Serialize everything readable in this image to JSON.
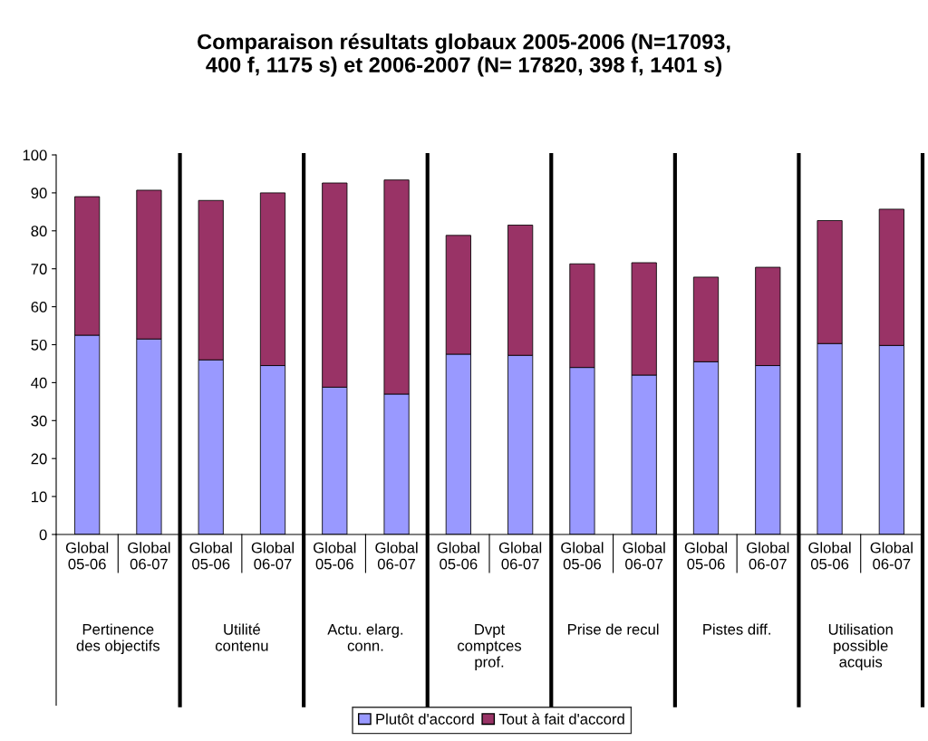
{
  "chart_data": {
    "type": "bar",
    "stacked": true,
    "title": "Comparaison résultats globaux 2005-2006 (N=17093,\n400 f, 1175 s) et 2006-2007 (N= 17820, 398 f, 1401 s)",
    "categories": [
      "Global\n05-06",
      "Global\n06-07",
      "Global\n05-06",
      "Global\n06-07",
      "Global\n05-06",
      "Global\n06-07",
      "Global\n05-06",
      "Global\n06-07",
      "Global\n05-06",
      "Global\n06-07",
      "Global\n05-06",
      "Global\n06-07",
      "Global\n05-06",
      "Global\n06-07"
    ],
    "series": [
      {
        "name": "Plutôt d'accord",
        "color": "#9999ff",
        "values": [
          52.5,
          51.5,
          46,
          44.5,
          38.8,
          37,
          47.5,
          47.2,
          44,
          42,
          45.5,
          44.5,
          50.3,
          49.8
        ]
      },
      {
        "name": "Tout à fait d'accord",
        "color": "#993366",
        "values": [
          36.5,
          39.2,
          42,
          45.5,
          53.8,
          56.4,
          31.3,
          34.3,
          27.3,
          29.6,
          22.3,
          25.9,
          32.4,
          35.9
        ]
      }
    ],
    "annotations": [
      "Pertinence\ndes objectifs",
      "Utilité\ncontenu",
      "Actu. elarg.\nconn.",
      "Dvpt\ncomptces\nprof.",
      "Prise de recul",
      "Pistes diff.",
      "Utilisation\npossible\nacquis"
    ],
    "ylim": [
      0,
      100
    ],
    "yticks": [
      0,
      10,
      20,
      30,
      40,
      50,
      60,
      70,
      80,
      90,
      100
    ],
    "grid": false,
    "legend": "bottom"
  }
}
